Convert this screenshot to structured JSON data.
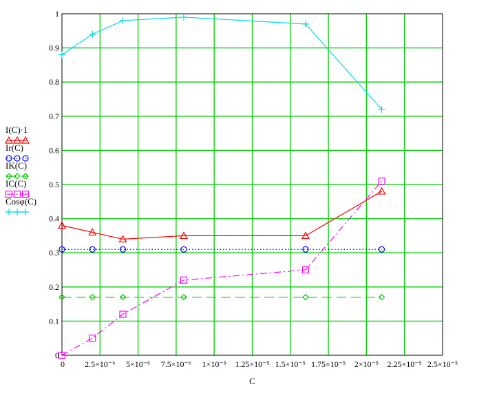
{
  "chart_data": {
    "type": "line",
    "xlabel": "C",
    "ylabel": "",
    "xlim": [
      0,
      2.5e-05
    ],
    "ylim": [
      0,
      1
    ],
    "x_tick_labels": [
      "0",
      "2.5×10⁻⁶",
      "5×10⁻⁶",
      "7.5×10⁻⁶",
      "1×10⁻⁵",
      "1.25×10⁻⁵",
      "1.5×10⁻⁵",
      "1.75×10⁻⁵",
      "2×10⁻⁵",
      "2.25×10⁻⁵",
      "2.5×10⁻⁵"
    ],
    "y_tick_labels": [
      "0",
      "0.1",
      "0.2",
      "0.3",
      "0.4",
      "0.5",
      "0.6",
      "0.7",
      "0.8",
      "0.9",
      "1"
    ],
    "grid": true,
    "grid_color": "#00cc00",
    "legend_position": "left",
    "series": [
      {
        "name": "I(C)·1",
        "color": "#ff0000",
        "line": "solid",
        "marker": "triangle",
        "x": [
          0,
          2e-06,
          4e-06,
          8e-06,
          1.6e-05,
          2.1e-05
        ],
        "y": [
          0.38,
          0.36,
          0.34,
          0.35,
          0.35,
          0.48
        ]
      },
      {
        "name": "Ir(C)",
        "color": "#0000ff",
        "line": "dotted",
        "marker": "circle",
        "x": [
          0,
          2e-06,
          4e-06,
          8e-06,
          1.6e-05,
          2.1e-05
        ],
        "y": [
          0.31,
          0.31,
          0.31,
          0.31,
          0.31,
          0.31
        ]
      },
      {
        "name": "IK(C)",
        "color": "#00cc00",
        "line": "dashed",
        "marker": "diamond",
        "x": [
          0,
          2e-06,
          4e-06,
          8e-06,
          1.6e-05,
          2.1e-05
        ],
        "y": [
          0.17,
          0.17,
          0.17,
          0.17,
          0.17,
          0.17
        ]
      },
      {
        "name": "IC(C)",
        "color": "#ff00ff",
        "line": "dashdot",
        "marker": "square",
        "x": [
          0,
          2e-06,
          4e-06,
          8e-06,
          1.6e-05,
          2.1e-05
        ],
        "y": [
          0.0,
          0.05,
          0.12,
          0.22,
          0.25,
          0.51
        ]
      },
      {
        "name": "Cosφ(C)",
        "color": "#00d8e8",
        "line": "solid",
        "marker": "plus",
        "x": [
          0,
          2e-06,
          4e-06,
          8e-06,
          1.6e-05,
          2.1e-05
        ],
        "y": [
          0.88,
          0.94,
          0.98,
          0.99,
          0.97,
          0.72
        ]
      }
    ]
  }
}
